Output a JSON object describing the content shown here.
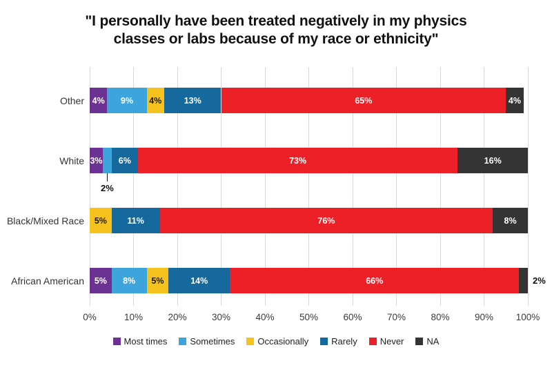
{
  "title": "\"I personally have been treated negatively in my physics classes or labs because of my race or ethnicity\"",
  "chart_data": {
    "type": "bar",
    "orientation": "horizontal-stacked",
    "title": "\"I personally have been treated negatively in my physics classes or labs because of my race or ethnicity\"",
    "xlabel": "",
    "ylabel": "",
    "xlim": [
      0,
      100
    ],
    "x_ticks": [
      "0%",
      "10%",
      "20%",
      "30%",
      "40%",
      "50%",
      "60%",
      "70%",
      "80%",
      "90%",
      "100%"
    ],
    "grid": "vertical",
    "legend_position": "bottom",
    "series": [
      {
        "name": "Most times",
        "color": "#6C3293",
        "label_color": "#ffffff"
      },
      {
        "name": "Sometimes",
        "color": "#3EA5DC",
        "label_color": "#ffffff"
      },
      {
        "name": "Occasionally",
        "color": "#F6C21D",
        "label_color": "#1a1a1a"
      },
      {
        "name": "Rarely",
        "color": "#16699D",
        "label_color": "#ffffff"
      },
      {
        "name": "Never",
        "color": "#EC2127",
        "label_color": "#ffffff"
      },
      {
        "name": "NA",
        "color": "#343434",
        "label_color": "#ffffff"
      }
    ],
    "categories": [
      "Other",
      "White",
      "Black/Mixed Race",
      "African American"
    ],
    "rows": [
      {
        "category": "Other",
        "segments": [
          {
            "series": "Most times",
            "value": 4,
            "label": "4%",
            "placement": "inside"
          },
          {
            "series": "Sometimes",
            "value": 9,
            "label": "9%",
            "placement": "inside"
          },
          {
            "series": "Occasionally",
            "value": 4,
            "label": "4%",
            "placement": "inside"
          },
          {
            "series": "Rarely",
            "value": 13,
            "label": "13%",
            "placement": "inside"
          },
          {
            "series": "Never",
            "value": 65,
            "label": "65%",
            "placement": "inside"
          },
          {
            "series": "NA",
            "value": 4,
            "label": "4%",
            "placement": "inside"
          }
        ]
      },
      {
        "category": "White",
        "segments": [
          {
            "series": "Most times",
            "value": 3,
            "label": "3%",
            "placement": "inside"
          },
          {
            "series": "Sometimes",
            "value": 2,
            "label": "2%",
            "placement": "below"
          },
          {
            "series": "Rarely",
            "value": 6,
            "label": "6%",
            "placement": "inside"
          },
          {
            "series": "Never",
            "value": 73,
            "label": "73%",
            "placement": "inside"
          },
          {
            "series": "NA",
            "value": 16,
            "label": "16%",
            "placement": "inside"
          }
        ]
      },
      {
        "category": "Black/Mixed Race",
        "segments": [
          {
            "series": "Occasionally",
            "value": 5,
            "label": "5%",
            "placement": "inside"
          },
          {
            "series": "Rarely",
            "value": 11,
            "label": "11%",
            "placement": "inside"
          },
          {
            "series": "Never",
            "value": 76,
            "label": "76%",
            "placement": "inside"
          },
          {
            "series": "NA",
            "value": 8,
            "label": "8%",
            "placement": "inside"
          }
        ]
      },
      {
        "category": "African American",
        "segments": [
          {
            "series": "Most times",
            "value": 5,
            "label": "5%",
            "placement": "inside"
          },
          {
            "series": "Sometimes",
            "value": 8,
            "label": "8%",
            "placement": "inside"
          },
          {
            "series": "Occasionally",
            "value": 5,
            "label": "5%",
            "placement": "inside"
          },
          {
            "series": "Rarely",
            "value": 14,
            "label": "14%",
            "placement": "inside"
          },
          {
            "series": "Never",
            "value": 66,
            "label": "66%",
            "placement": "inside"
          },
          {
            "series": "NA",
            "value": 2,
            "label": "2%",
            "placement": "right"
          }
        ]
      }
    ],
    "colors": {
      "gridline": "#d9d9d9",
      "title_text": "#111111",
      "category_text": "#333333",
      "tick_text": "#3a3a3a",
      "legend_text": "#222222"
    }
  }
}
